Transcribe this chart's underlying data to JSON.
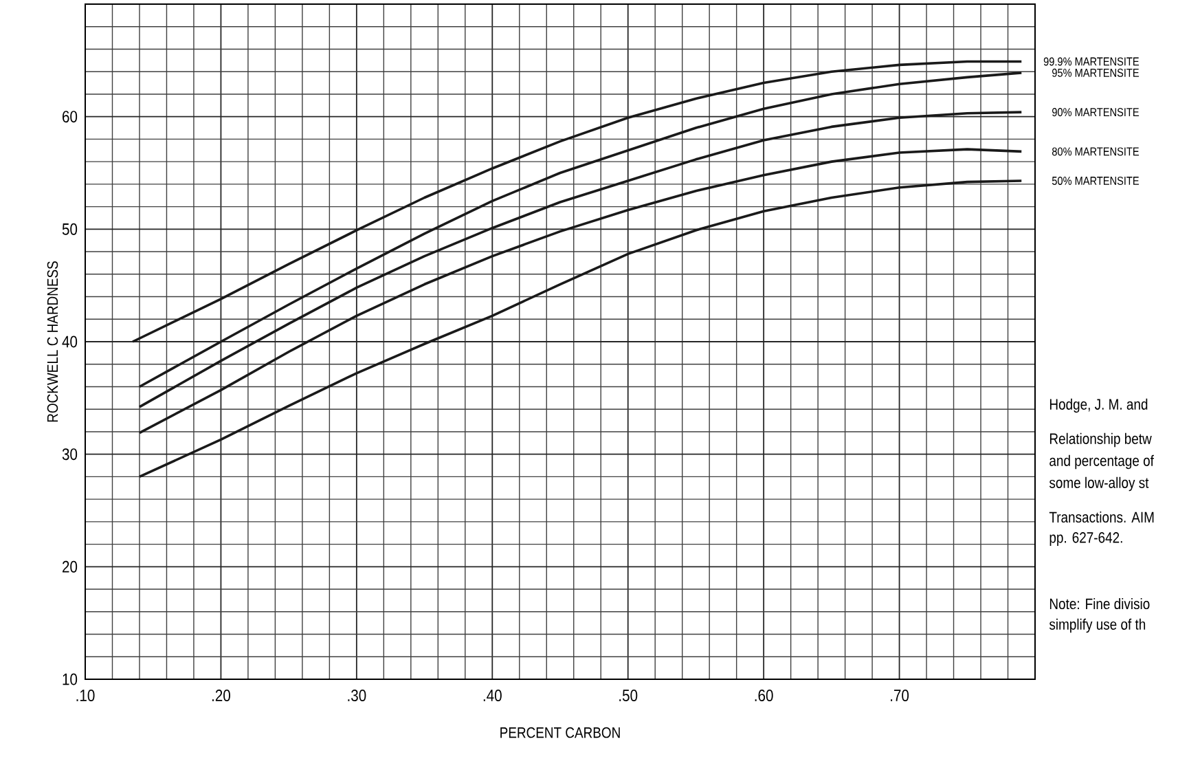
{
  "chart_data": {
    "type": "line",
    "xlabel": "PERCENT CARBON",
    "ylabel": "ROCKWELL C HARDNESS",
    "xlim": [
      0.1,
      0.8
    ],
    "ylim": [
      10,
      70
    ],
    "xticks": [
      {
        "value": 0.1,
        "label": ".10"
      },
      {
        "value": 0.2,
        "label": ".20"
      },
      {
        "value": 0.3,
        "label": ".30"
      },
      {
        "value": 0.4,
        "label": ".40"
      },
      {
        "value": 0.5,
        "label": ".50"
      },
      {
        "value": 0.6,
        "label": ".60"
      },
      {
        "value": 0.7,
        "label": ".70"
      },
      {
        "value": 0.8,
        "label": null
      }
    ],
    "yticks": [
      10,
      20,
      30,
      40,
      50,
      60,
      {
        "value": 70,
        "label": null
      }
    ],
    "grid": true,
    "legend": false,
    "marker": "none",
    "line_style": "solid",
    "series": [
      {
        "name": "99.9% MARTENSITE",
        "color": "#1a1a1a",
        "x": [
          0.135,
          0.2,
          0.25,
          0.3,
          0.35,
          0.4,
          0.45,
          0.5,
          0.55,
          0.6,
          0.65,
          0.7,
          0.75,
          0.79
        ],
        "values": [
          40,
          43.8,
          46.9,
          49.9,
          52.8,
          55.4,
          57.8,
          59.9,
          61.6,
          63.0,
          64.0,
          64.6,
          64.9,
          64.9
        ]
      },
      {
        "name": "95% MARTENSITE",
        "color": "#1a1a1a",
        "x": [
          0.14,
          0.2,
          0.25,
          0.3,
          0.35,
          0.4,
          0.45,
          0.5,
          0.55,
          0.6,
          0.65,
          0.7,
          0.75,
          0.79
        ],
        "values": [
          36,
          40.0,
          43.3,
          46.5,
          49.6,
          52.5,
          55.0,
          57.0,
          59.0,
          60.7,
          62.0,
          62.9,
          63.5,
          63.9
        ]
      },
      {
        "name": "90% MARTENSITE",
        "color": "#1a1a1a",
        "x": [
          0.14,
          0.2,
          0.25,
          0.3,
          0.35,
          0.4,
          0.45,
          0.5,
          0.55,
          0.6,
          0.65,
          0.7,
          0.75,
          0.79
        ],
        "values": [
          34.2,
          38.3,
          41.6,
          44.8,
          47.6,
          50.1,
          52.4,
          54.3,
          56.2,
          57.9,
          59.1,
          59.9,
          60.3,
          60.4
        ]
      },
      {
        "name": "80% MARTENSITE",
        "color": "#1a1a1a",
        "x": [
          0.14,
          0.2,
          0.25,
          0.3,
          0.35,
          0.4,
          0.45,
          0.5,
          0.55,
          0.6,
          0.65,
          0.7,
          0.75,
          0.79
        ],
        "values": [
          31.9,
          35.7,
          39.1,
          42.3,
          45.1,
          47.6,
          49.8,
          51.7,
          53.4,
          54.8,
          56.0,
          56.8,
          57.1,
          56.9
        ]
      },
      {
        "name": "50% MARTENSITE",
        "color": "#1a1a1a",
        "x": [
          0.14,
          0.2,
          0.25,
          0.3,
          0.35,
          0.4,
          0.45,
          0.5,
          0.55,
          0.6,
          0.65,
          0.7,
          0.75,
          0.79
        ],
        "values": [
          28.0,
          31.3,
          34.3,
          37.2,
          39.8,
          42.3,
          45.1,
          47.8,
          49.9,
          51.6,
          52.8,
          53.7,
          54.2,
          54.3
        ]
      }
    ],
    "annotations": [
      "Hodge, J. M. and",
      "Relationship betw",
      "and percentage of",
      "some low-alloy st",
      "Transactions. AIM",
      "pp. 627-642.",
      "Note: Fine divisio",
      "simplify use of th"
    ]
  }
}
